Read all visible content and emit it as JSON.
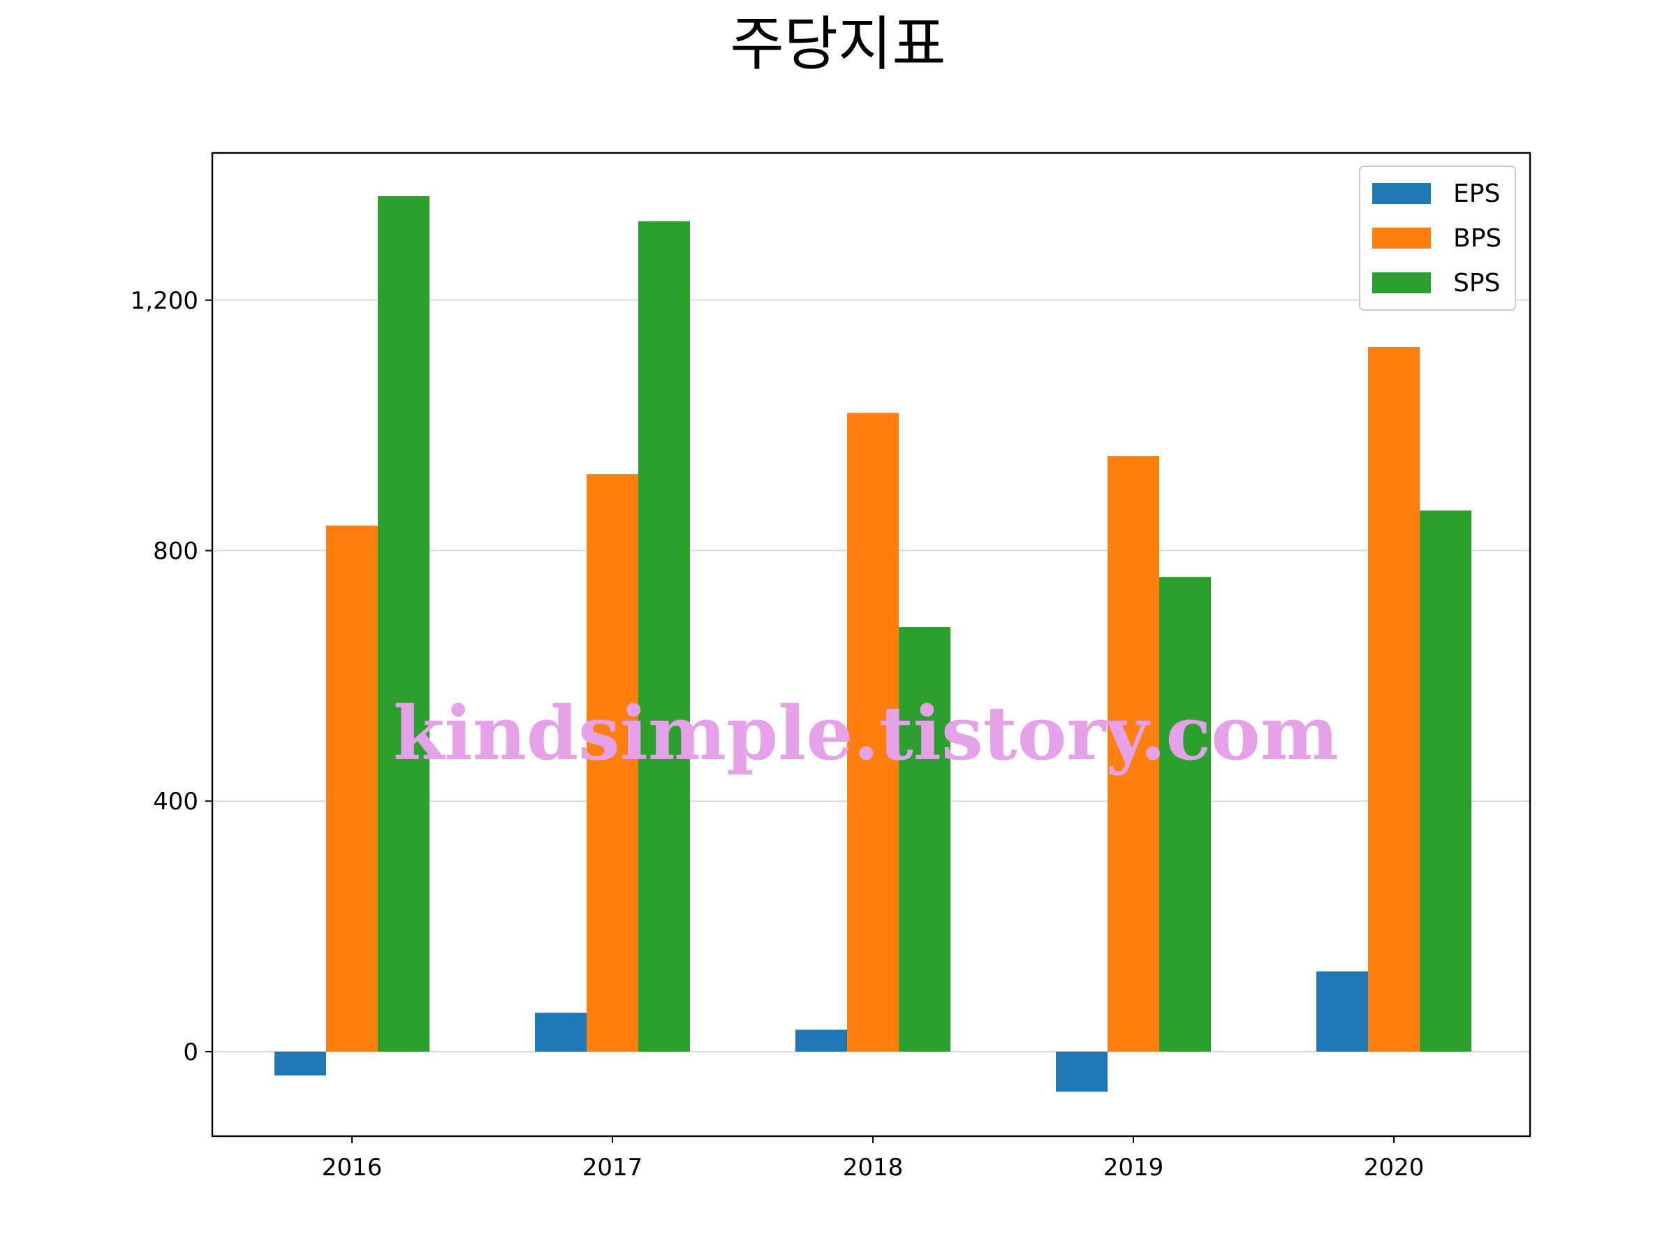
{
  "chart_data": {
    "type": "bar",
    "title": "주당지표",
    "xlabel": "",
    "ylabel": "",
    "categories": [
      "2016",
      "2017",
      "2018",
      "2019",
      "2020"
    ],
    "series": [
      {
        "name": "EPS",
        "color": "#1f77b4",
        "values": [
          -38,
          62,
          35,
          -64,
          128
        ]
      },
      {
        "name": "BPS",
        "color": "#ff7f0e",
        "values": [
          840,
          922,
          1020,
          951,
          1125
        ]
      },
      {
        "name": "SPS",
        "color": "#2ca02c",
        "values": [
          1366,
          1326,
          678,
          758,
          864
        ]
      }
    ],
    "ylim": [
      -135,
      1435
    ],
    "yticks": [
      0,
      400,
      800,
      1200
    ],
    "ytick_labels": [
      "0",
      "400",
      "800",
      "1,200"
    ],
    "grid": "horizontal",
    "legend_position": "top-right"
  },
  "watermark": "kindsimple.tistory.com"
}
